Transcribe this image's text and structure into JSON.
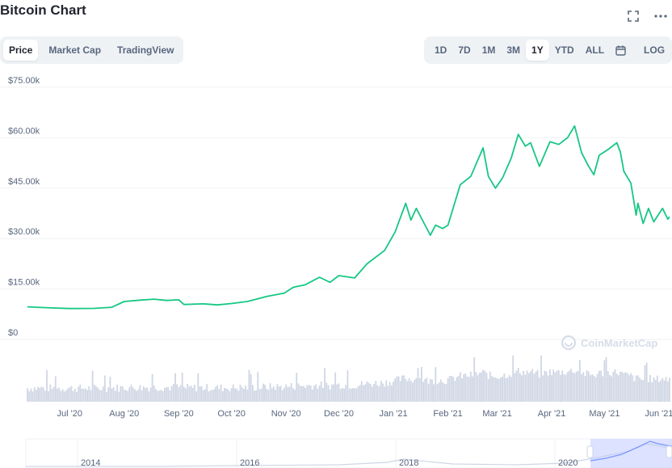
{
  "header": {
    "title": "Bitcoin Chart",
    "icons": [
      "fullscreen-icon",
      "more-icon"
    ]
  },
  "tabs": [
    {
      "label": "Price",
      "active": true
    },
    {
      "label": "Market Cap",
      "active": false
    },
    {
      "label": "TradingView",
      "active": false
    }
  ],
  "ranges": [
    {
      "label": "1D",
      "active": false
    },
    {
      "label": "7D",
      "active": false
    },
    {
      "label": "1M",
      "active": false
    },
    {
      "label": "3M",
      "active": false
    },
    {
      "label": "1Y",
      "active": true
    },
    {
      "label": "YTD",
      "active": false
    },
    {
      "label": "ALL",
      "active": false
    }
  ],
  "calendar_icon": "calendar-icon",
  "log_label": "LOG",
  "watermark": "CoinMarketCap",
  "colors": {
    "line": "#16c784",
    "volume": "#cfd6e4",
    "grid": "#eff2f5",
    "navigator_fill": "#bfcaff",
    "text": "#58667e"
  },
  "chart_data": {
    "type": "line",
    "title": "",
    "xlabel": "",
    "ylabel": "",
    "ylim": [
      0,
      75000
    ],
    "y_ticks": [
      "$0",
      "$15.00k",
      "$30.00k",
      "$45.00k",
      "$60.00k",
      "$75.00k"
    ],
    "y_tick_values": [
      0,
      15000,
      30000,
      45000,
      60000,
      75000
    ],
    "x_range": [
      "2020-06-07",
      "2021-06-07"
    ],
    "x_ticks": [
      {
        "label": "Jul '20",
        "date": "2020-07-01"
      },
      {
        "label": "Aug '20",
        "date": "2020-08-01"
      },
      {
        "label": "Sep '20",
        "date": "2020-09-01"
      },
      {
        "label": "Oct '20",
        "date": "2020-10-01"
      },
      {
        "label": "Nov '20",
        "date": "2020-11-01"
      },
      {
        "label": "Dec '20",
        "date": "2020-12-01"
      },
      {
        "label": "Jan '21",
        "date": "2021-01-01"
      },
      {
        "label": "Feb '21",
        "date": "2021-02-01"
      },
      {
        "label": "Mar '21",
        "date": "2021-03-01"
      },
      {
        "label": "Apr '21",
        "date": "2021-04-01"
      },
      {
        "label": "May '21",
        "date": "2021-05-01"
      },
      {
        "label": "Jun '21",
        "date": "2021-06-01"
      }
    ],
    "series": [
      {
        "color": "#16c784",
        "points": [
          [
            "2020-06-07",
            9700
          ],
          [
            "2020-06-20",
            9400
          ],
          [
            "2020-07-01",
            9200
          ],
          [
            "2020-07-15",
            9250
          ],
          [
            "2020-07-25",
            9600
          ],
          [
            "2020-08-01",
            11300
          ],
          [
            "2020-08-10",
            11700
          ],
          [
            "2020-08-18",
            12000
          ],
          [
            "2020-08-25",
            11600
          ],
          [
            "2020-09-01",
            11800
          ],
          [
            "2020-09-04",
            10400
          ],
          [
            "2020-09-15",
            10600
          ],
          [
            "2020-09-23",
            10300
          ],
          [
            "2020-10-01",
            10700
          ],
          [
            "2020-10-10",
            11300
          ],
          [
            "2020-10-21",
            12800
          ],
          [
            "2020-10-31",
            13800
          ],
          [
            "2020-11-05",
            15500
          ],
          [
            "2020-11-12",
            16300
          ],
          [
            "2020-11-20",
            18500
          ],
          [
            "2020-11-26",
            17000
          ],
          [
            "2020-12-01",
            19000
          ],
          [
            "2020-12-10",
            18300
          ],
          [
            "2020-12-17",
            22500
          ],
          [
            "2020-12-27",
            26500
          ],
          [
            "2021-01-02",
            32000
          ],
          [
            "2021-01-08",
            40500
          ],
          [
            "2021-01-11",
            35500
          ],
          [
            "2021-01-14",
            39000
          ],
          [
            "2021-01-22",
            31000
          ],
          [
            "2021-01-25",
            34000
          ],
          [
            "2021-01-29",
            33000
          ],
          [
            "2021-02-01",
            34000
          ],
          [
            "2021-02-08",
            46000
          ],
          [
            "2021-02-14",
            48500
          ],
          [
            "2021-02-21",
            57000
          ],
          [
            "2021-02-24",
            48500
          ],
          [
            "2021-02-28",
            45000
          ],
          [
            "2021-03-04",
            48000
          ],
          [
            "2021-03-09",
            54000
          ],
          [
            "2021-03-13",
            61000
          ],
          [
            "2021-03-17",
            57500
          ],
          [
            "2021-03-20",
            58500
          ],
          [
            "2021-03-25",
            51500
          ],
          [
            "2021-03-31",
            58800
          ],
          [
            "2021-04-05",
            58000
          ],
          [
            "2021-04-10",
            60000
          ],
          [
            "2021-04-14",
            63500
          ],
          [
            "2021-04-18",
            55500
          ],
          [
            "2021-04-22",
            51500
          ],
          [
            "2021-04-25",
            49000
          ],
          [
            "2021-04-28",
            54800
          ],
          [
            "2021-05-03",
            56500
          ],
          [
            "2021-05-08",
            58500
          ],
          [
            "2021-05-10",
            55800
          ],
          [
            "2021-05-12",
            50000
          ],
          [
            "2021-05-16",
            46500
          ],
          [
            "2021-05-19",
            37000
          ],
          [
            "2021-05-20",
            40500
          ],
          [
            "2021-05-23",
            34500
          ],
          [
            "2021-05-26",
            39000
          ],
          [
            "2021-05-29",
            35000
          ],
          [
            "2021-06-03",
            39000
          ],
          [
            "2021-06-06",
            35800
          ],
          [
            "2021-06-07",
            36500
          ]
        ]
      }
    ],
    "volume_note": "volume bars (unlabeled)",
    "navigator_labels": [
      "2014",
      "2016",
      "2018",
      "2020"
    ]
  }
}
